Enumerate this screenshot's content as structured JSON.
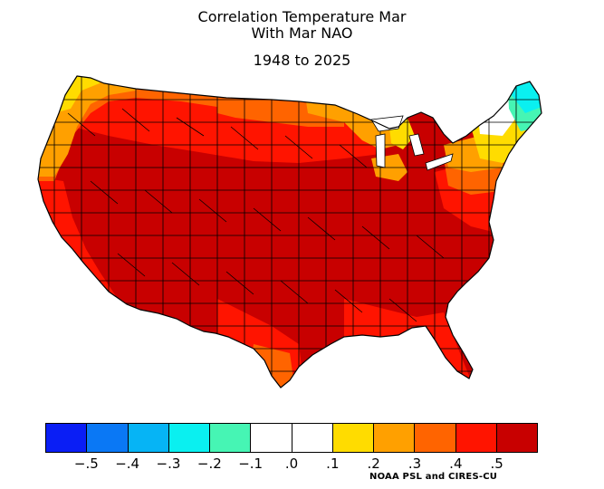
{
  "title": {
    "line1": "Correlation Temperature Mar",
    "line2": "With Mar NAO",
    "period": "1948 to 2025"
  },
  "colorbar": {
    "colors": [
      "#0a1ef5",
      "#0a78f5",
      "#06b4f5",
      "#0af0f0",
      "#46f5b4",
      "#ffffff",
      "#ffffff",
      "#ffdc00",
      "#ffa000",
      "#ff6400",
      "#ff1400",
      "#c80000"
    ],
    "ticks": [
      "-.5",
      "-.4",
      "-.3",
      "-.2",
      "-.1",
      ".0",
      ".1",
      ".2",
      ".3",
      ".4",
      ".5"
    ]
  },
  "credit": "NOAA PSL and CIRES-CU",
  "map_legend_colors": {
    "dark_red": "#c80000",
    "red": "#ff1400",
    "red_orange": "#ff6400",
    "orange": "#ffa000",
    "yellow": "#ffdc00",
    "white": "#ffffff",
    "seafoam": "#46f5b4",
    "cyan": "#0af0f0"
  }
}
